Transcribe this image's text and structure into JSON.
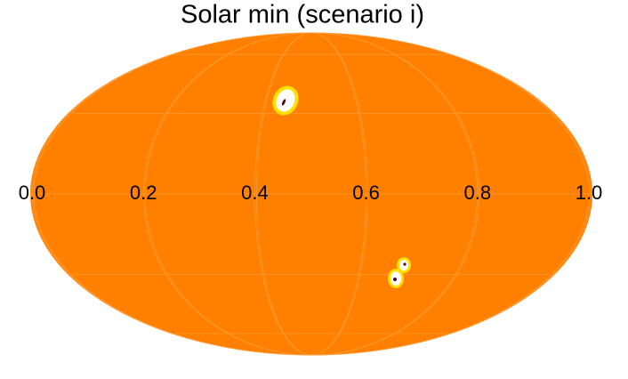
{
  "chart_data": {
    "type": "mollweide",
    "title": "Solar min (scenario i)",
    "color": "#ff8000",
    "xlim": [
      0,
      1
    ],
    "xticks": [
      {
        "value": 0,
        "label": "0.0"
      },
      {
        "value": 0.2,
        "label": "0.2"
      },
      {
        "value": 0.4,
        "label": "0.4"
      },
      {
        "value": 0.6,
        "label": "0.6"
      },
      {
        "value": 0.8,
        "label": "0.8"
      },
      {
        "value": 1,
        "label": "1.0"
      }
    ],
    "grid": true
  }
}
